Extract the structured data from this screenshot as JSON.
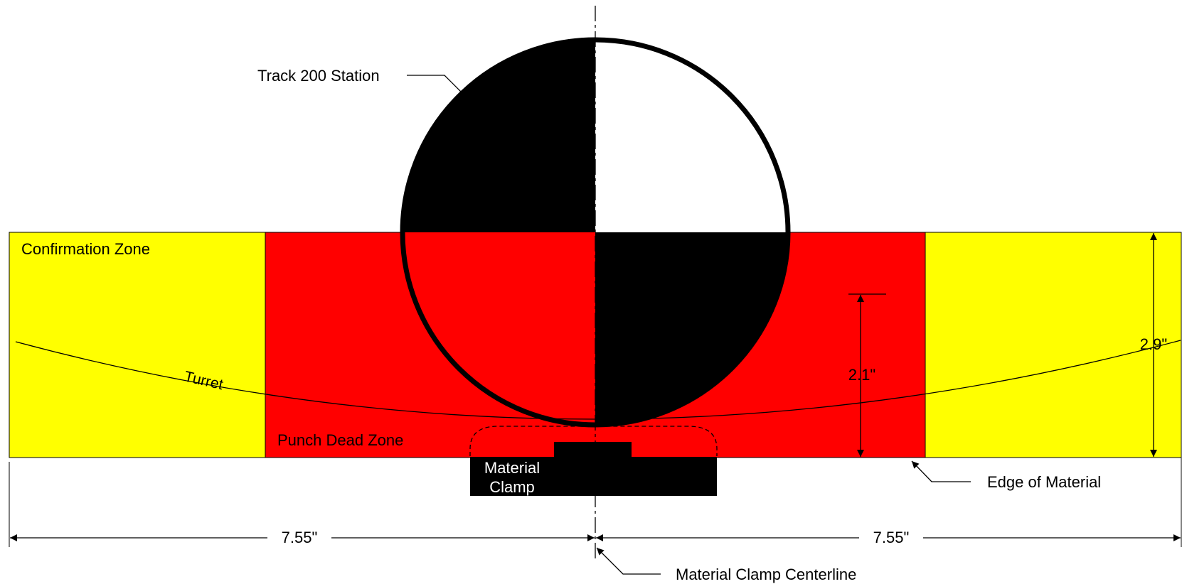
{
  "labels": {
    "station": "Track 200 Station",
    "confirmation_zone": "Confirmation Zone",
    "turret": "Turret",
    "punch_dead_zone": "Punch Dead Zone",
    "clamp_line1": "Material",
    "clamp_line2": "Clamp",
    "edge_of_material": "Edge of Material",
    "clamp_centerline": "Material Clamp Centerline"
  },
  "dimensions": {
    "left_width": "7.55\"",
    "right_width": "7.55\"",
    "dead_zone_height": "2.1\"",
    "total_height": "2.9\""
  },
  "colors": {
    "confirmation_zone": "#ffff00",
    "punch_dead_zone": "#ff0000",
    "station_dark": "#000000",
    "station_light": "#ffffff"
  }
}
